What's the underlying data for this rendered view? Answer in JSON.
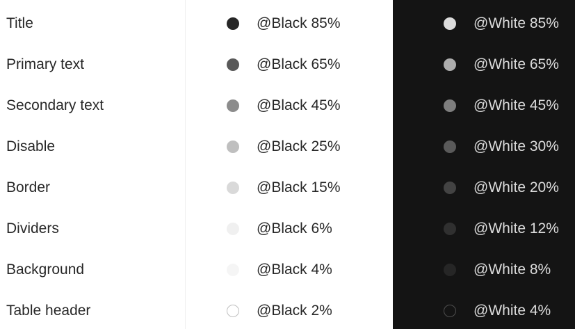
{
  "rows": [
    {
      "label": "Title",
      "light_token": "@Black 85%",
      "light_color": "rgba(0,0,0,0.85)",
      "dark_token": "@White 85%",
      "dark_color": "rgba(255,255,255,0.85)"
    },
    {
      "label": "Primary text",
      "light_token": "@Black 65%",
      "light_color": "rgba(0,0,0,0.65)",
      "dark_token": "@White 65%",
      "dark_color": "rgba(255,255,255,0.65)"
    },
    {
      "label": "Secondary text",
      "light_token": "@Black 45%",
      "light_color": "rgba(0,0,0,0.45)",
      "dark_token": "@White 45%",
      "dark_color": "rgba(255,255,255,0.45)"
    },
    {
      "label": "Disable",
      "light_token": "@Black 25%",
      "light_color": "rgba(0,0,0,0.25)",
      "dark_token": "@White 30%",
      "dark_color": "rgba(255,255,255,0.30)"
    },
    {
      "label": "Border",
      "light_token": "@Black 15%",
      "light_color": "rgba(0,0,0,0.15)",
      "dark_token": "@White 20%",
      "dark_color": "rgba(255,255,255,0.20)"
    },
    {
      "label": "Dividers",
      "light_token": "@Black 6%",
      "light_color": "rgba(0,0,0,0.06)",
      "dark_token": "@White 12%",
      "dark_color": "rgba(255,255,255,0.12)"
    },
    {
      "label": "Background",
      "light_token": "@Black 4%",
      "light_color": "rgba(0,0,0,0.04)",
      "dark_token": "@White 8%",
      "dark_color": "rgba(255,255,255,0.08)"
    },
    {
      "label": "Table header",
      "light_token": "@Black 2%",
      "light_color": "rgba(0,0,0,0.02)",
      "dark_token": "@White 4%",
      "dark_color": "rgba(255,255,255,0.04)"
    }
  ],
  "colors": {
    "dark_background": "#141414",
    "column_divider": "#f0f0f0",
    "outlined_swatch_border": "#bfbfbf"
  }
}
